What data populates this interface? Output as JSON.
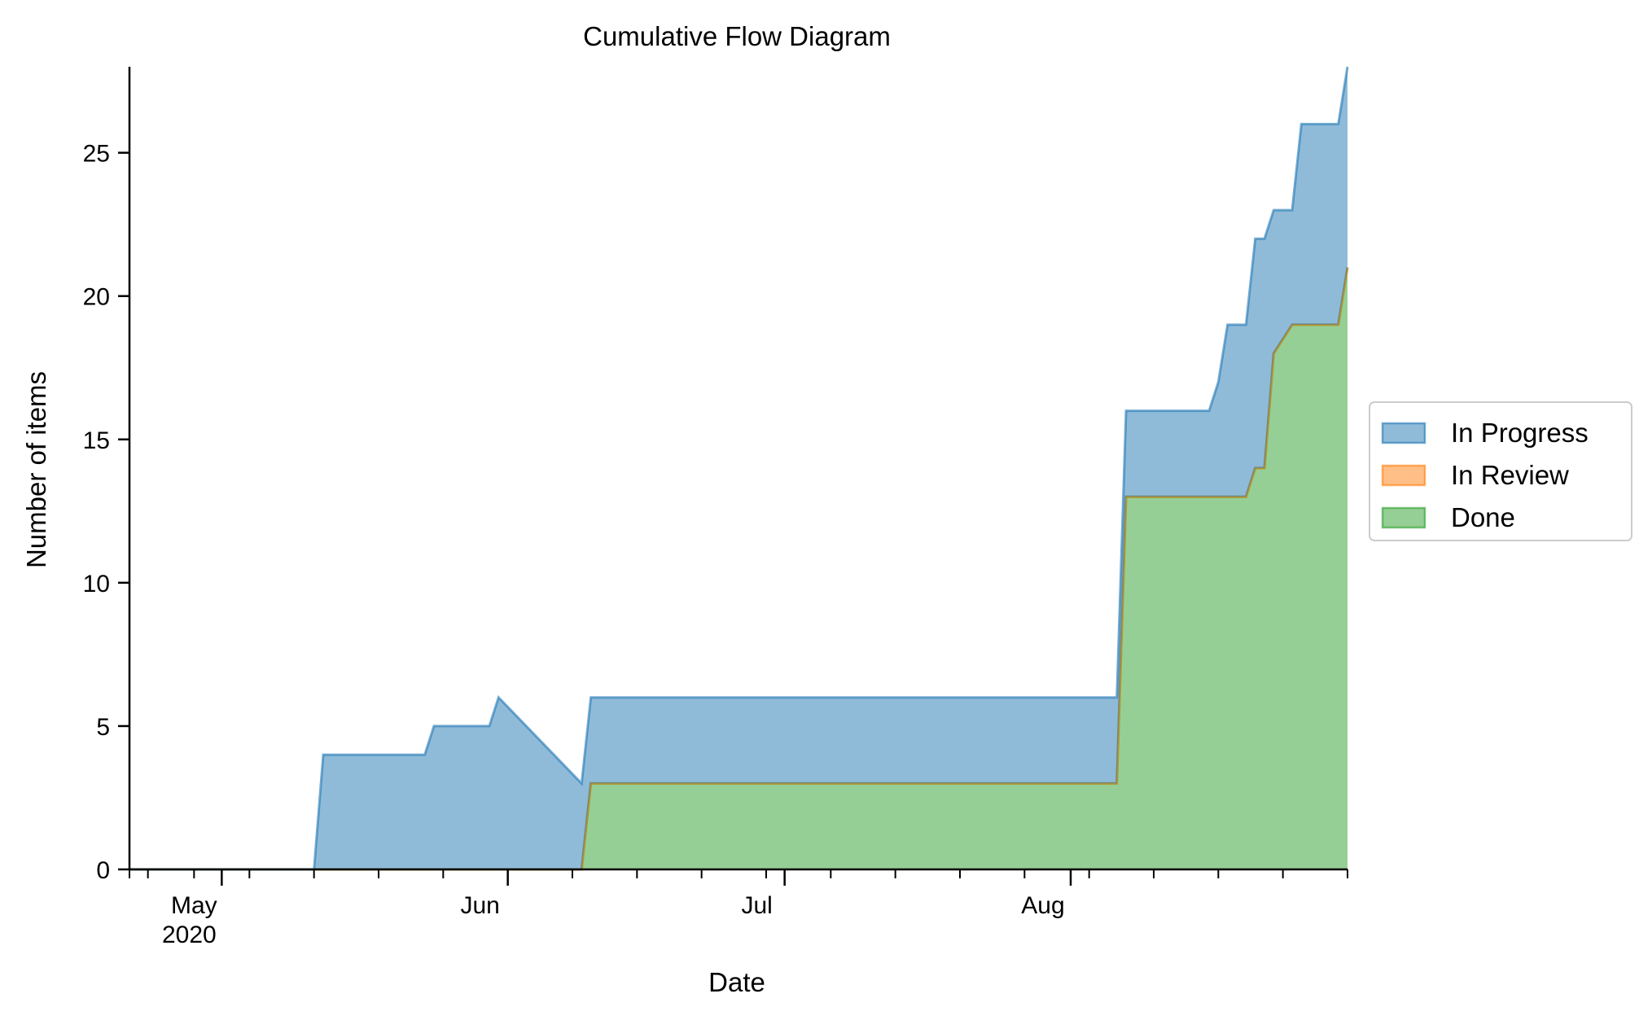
{
  "chart_data": {
    "type": "area",
    "stacked": true,
    "title": "Cumulative Flow Diagram",
    "xlabel": "Date",
    "ylabel": "Number of items",
    "xlim": [
      "2020-04-21",
      "2020-08-31"
    ],
    "ylim": [
      0,
      28
    ],
    "y_ticks": [
      0,
      5,
      10,
      15,
      20,
      25
    ],
    "x_major_ticks": [
      {
        "date": "2020-05-01",
        "label": "May",
        "sublabel": "2020"
      },
      {
        "date": "2020-06-01",
        "label": "Jun",
        "sublabel": ""
      },
      {
        "date": "2020-07-01",
        "label": "Jul",
        "sublabel": ""
      },
      {
        "date": "2020-08-01",
        "label": "Aug",
        "sublabel": ""
      }
    ],
    "x_minor_ticks": [
      "2020-04-21",
      "2020-04-23",
      "2020-04-28",
      "2020-05-04",
      "2020-05-11",
      "2020-05-18",
      "2020-05-25",
      "2020-06-08",
      "2020-06-15",
      "2020-06-22",
      "2020-06-29",
      "2020-07-06",
      "2020-07-13",
      "2020-07-20",
      "2020-07-27",
      "2020-08-03",
      "2020-08-10",
      "2020-08-17",
      "2020-08-24",
      "2020-08-31"
    ],
    "spines": {
      "top": false,
      "right": false
    },
    "grid": false,
    "legend_position": "center-right, outside plot",
    "x": [
      "2020-04-21",
      "2020-05-11",
      "2020-05-12",
      "2020-05-23",
      "2020-05-24",
      "2020-05-30",
      "2020-05-31",
      "2020-06-09",
      "2020-06-10",
      "2020-08-06",
      "2020-08-07",
      "2020-08-16",
      "2020-08-17",
      "2020-08-18",
      "2020-08-20",
      "2020-08-21",
      "2020-08-22",
      "2020-08-23",
      "2020-08-25",
      "2020-08-26",
      "2020-08-27",
      "2020-08-30",
      "2020-08-31"
    ],
    "series": [
      {
        "name": "Done",
        "color": "#2ca02c",
        "values": [
          0,
          0,
          0,
          0,
          0,
          0,
          0,
          0,
          3,
          3,
          13,
          13,
          13,
          13,
          13,
          14,
          14,
          18,
          19,
          19,
          19,
          19,
          21
        ]
      },
      {
        "name": "In Review",
        "color": "#ff7f0e",
        "values": [
          0,
          0,
          0,
          0,
          0,
          0,
          0,
          0,
          0,
          0,
          0,
          0,
          0,
          0,
          0,
          0,
          0,
          0,
          0,
          0,
          0,
          0,
          0
        ]
      },
      {
        "name": "In Progress",
        "color": "#1f77b4",
        "values": [
          0,
          0,
          4,
          4,
          5,
          5,
          6,
          3,
          3,
          3,
          3,
          3,
          4,
          6,
          6,
          8,
          8,
          5,
          4,
          7,
          7,
          7,
          7
        ]
      }
    ],
    "legend_order": [
      "In Progress",
      "In Review",
      "Done"
    ]
  }
}
